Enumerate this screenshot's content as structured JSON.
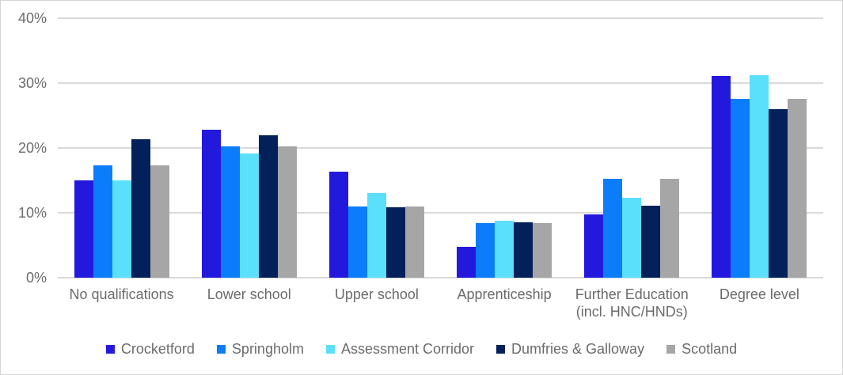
{
  "chart_data": {
    "type": "bar",
    "title": "",
    "categories": [
      "No qualifications",
      "Lower school",
      "Upper school",
      "Apprenticeship",
      "Further Education (incl. HNC/HNDs)",
      "Degree level"
    ],
    "category_display_labels": [
      "No qualifications",
      "Lower school",
      "Upper school",
      "Apprenticeship",
      "Further Education\n(incl. HNC/HNDs)",
      "Degree level"
    ],
    "series": [
      {
        "name": "Crocketford",
        "color": "#2319DC",
        "values": [
          15.0,
          22.8,
          16.4,
          4.8,
          9.7,
          31.1
        ]
      },
      {
        "name": "Springholm",
        "color": "#0B7DFA",
        "values": [
          17.3,
          20.2,
          11.0,
          8.4,
          15.3,
          27.6
        ]
      },
      {
        "name": "Assessment Corridor",
        "color": "#5BE0FB",
        "values": [
          15.0,
          19.2,
          13.1,
          8.8,
          12.3,
          31.2
        ]
      },
      {
        "name": "Dumfries & Galloway",
        "color": "#02205A",
        "values": [
          21.3,
          21.9,
          10.8,
          8.5,
          11.1,
          26.0
        ]
      },
      {
        "name": "Scotland",
        "color": "#A6A6A6",
        "values": [
          17.3,
          20.2,
          11.0,
          8.4,
          15.3,
          27.6
        ]
      }
    ],
    "xlabel": "",
    "ylabel": "",
    "ylim": [
      0,
      40
    ],
    "ytick_labels": [
      "0%",
      "10%",
      "20%",
      "30%",
      "40%"
    ],
    "grid": true,
    "legend_position": "bottom"
  },
  "style": {
    "gridline_color": "#d9d9d9",
    "axis_text_color": "#6b6b6b",
    "frame_border_color": "#d6d6d6",
    "background_color": "#ffffff"
  }
}
